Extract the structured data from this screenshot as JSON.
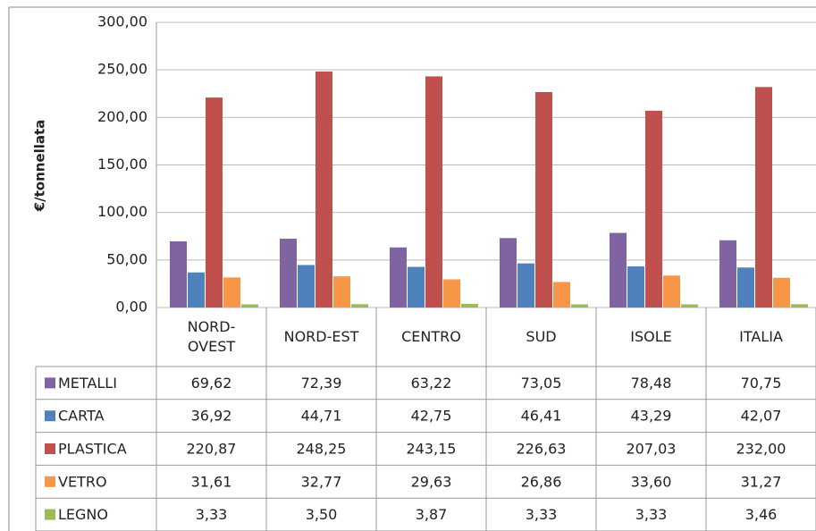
{
  "chart_data": {
    "type": "bar",
    "ylabel": "€/tonnellata",
    "categories": [
      "NORD-OVEST",
      "NORD-EST",
      "CENTRO",
      "SUD",
      "ISOLE",
      "ITALIA"
    ],
    "series": [
      {
        "name": "METALLI",
        "color": "#8064a2",
        "values": [
          69.62,
          72.39,
          63.22,
          73.05,
          78.48,
          70.75
        ],
        "value_labels": [
          "69,62",
          "72,39",
          "63,22",
          "73,05",
          "78,48",
          "70,75"
        ]
      },
      {
        "name": "CARTA",
        "color": "#4f81bd",
        "values": [
          36.92,
          44.71,
          42.75,
          46.41,
          43.29,
          42.07
        ],
        "value_labels": [
          "36,92",
          "44,71",
          "42,75",
          "46,41",
          "43,29",
          "42,07"
        ]
      },
      {
        "name": "PLASTICA",
        "color": "#c0504d",
        "values": [
          220.87,
          248.25,
          243.15,
          226.63,
          207.03,
          232.0
        ],
        "value_labels": [
          "220,87",
          "248,25",
          "243,15",
          "226,63",
          "207,03",
          "232,00"
        ]
      },
      {
        "name": "VETRO",
        "color": "#f79646",
        "values": [
          31.61,
          32.77,
          29.63,
          26.86,
          33.6,
          31.27
        ],
        "value_labels": [
          "31,61",
          "32,77",
          "29,63",
          "26,86",
          "33,60",
          "31,27"
        ]
      },
      {
        "name": "LEGNO",
        "color": "#9bbb59",
        "values": [
          3.33,
          3.5,
          3.87,
          3.33,
          3.33,
          3.46
        ],
        "value_labels": [
          "3,33",
          "3,50",
          "3,87",
          "3,33",
          "3,33",
          "3,46"
        ]
      }
    ],
    "ylim": [
      0,
      300
    ],
    "yticks": [
      {
        "value": 0,
        "label": "0,00"
      },
      {
        "value": 50,
        "label": "50,00"
      },
      {
        "value": 100,
        "label": "100,00"
      },
      {
        "value": 150,
        "label": "150,00"
      },
      {
        "value": 200,
        "label": "200,00"
      },
      {
        "value": 250,
        "label": "250,00"
      },
      {
        "value": 300,
        "label": "300,00"
      }
    ],
    "grid": true
  }
}
